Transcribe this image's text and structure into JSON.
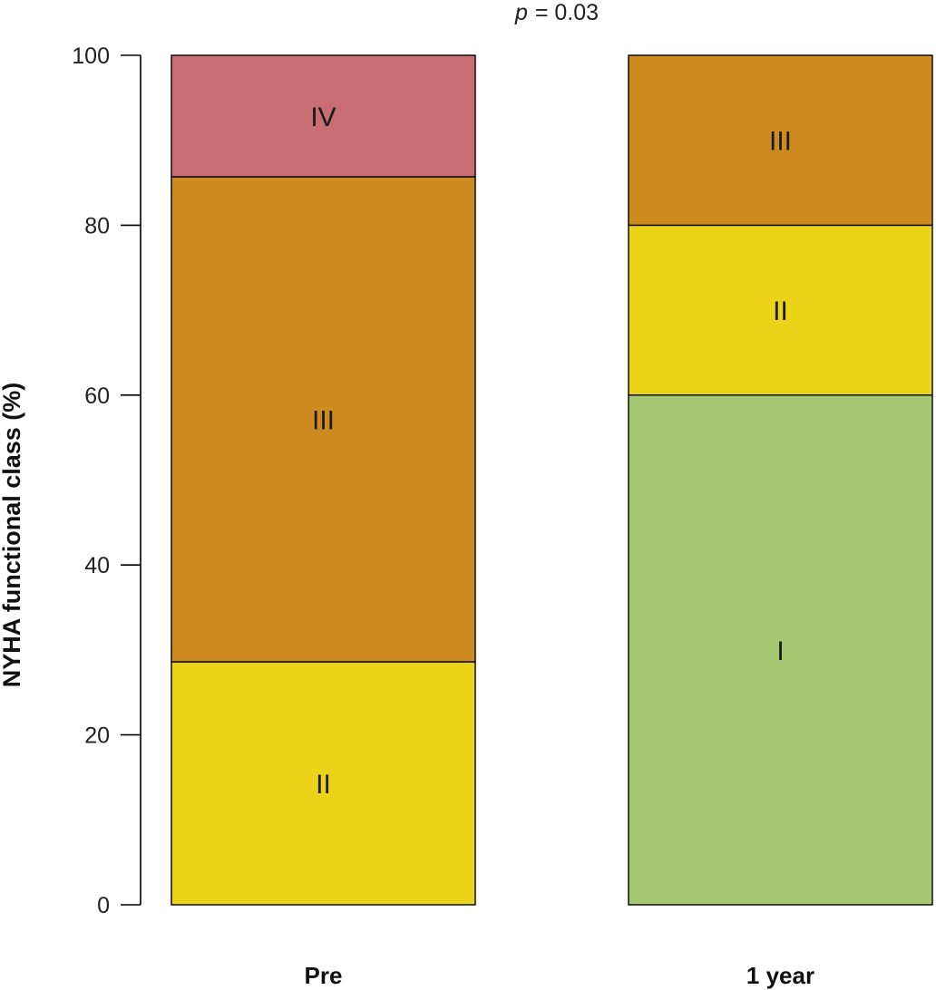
{
  "chart_data": {
    "type": "bar",
    "stacked": true,
    "title": "",
    "annotation_prefix": "p",
    "annotation_value": "= 0.03",
    "xlabel": "",
    "ylabel": "NYHA functional class (%)",
    "ylim": [
      0,
      100
    ],
    "yticks": [
      0,
      20,
      40,
      60,
      80,
      100
    ],
    "grid": false,
    "categories": [
      "Pre",
      "1 year"
    ],
    "series": [
      {
        "name": "I",
        "color": "#a5c873",
        "values": [
          0,
          60
        ]
      },
      {
        "name": "II",
        "color": "#ebd31a",
        "values": [
          28.6,
          20
        ]
      },
      {
        "name": "III",
        "color": "#cd8b1f",
        "values": [
          57.1,
          20
        ]
      },
      {
        "name": "IV",
        "color": "#c86d71",
        "values": [
          14.3,
          0
        ]
      }
    ]
  }
}
